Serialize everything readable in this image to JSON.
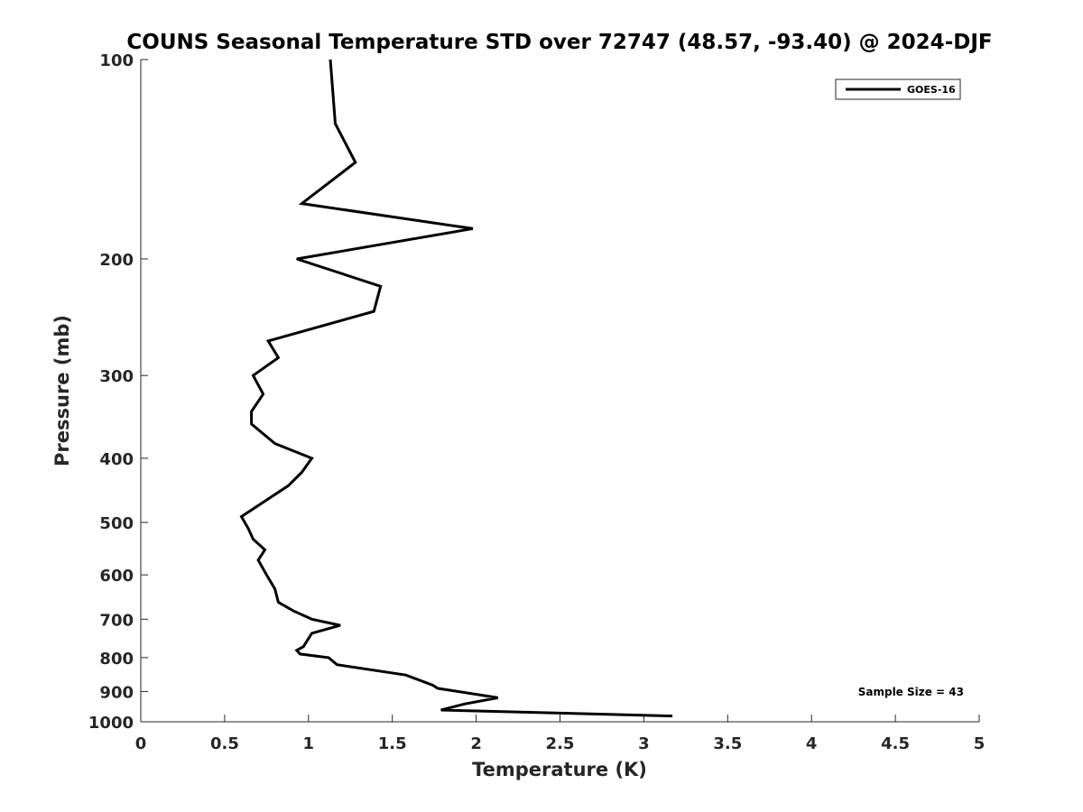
{
  "chart_data": {
    "type": "line",
    "title": "COUNS Seasonal Temperature STD over 72747 (48.57, -93.40) @ 2024-DJF",
    "xlabel": "Temperature (K)",
    "ylabel": "Pressure (mb)",
    "xlim": [
      0,
      5
    ],
    "ylim": [
      100,
      1000
    ],
    "y_scale": "log",
    "y_reversed": true,
    "grid": false,
    "legend_position": "top-right",
    "x_ticks": [
      "0",
      "0.5",
      "1",
      "1.5",
      "2",
      "2.5",
      "3",
      "3.5",
      "4",
      "4.5",
      "5"
    ],
    "y_ticks": [
      "100",
      "200",
      "300",
      "400",
      "500",
      "600",
      "700",
      "800",
      "900",
      "1000"
    ],
    "annotation": "Sample Size = 43",
    "series": [
      {
        "name": "GOES-16",
        "color": "#000000",
        "points": [
          [
            1.13,
            100
          ],
          [
            1.16,
            125
          ],
          [
            1.28,
            143
          ],
          [
            0.96,
            165
          ],
          [
            1.98,
            180
          ],
          [
            0.93,
            200
          ],
          [
            1.43,
            220
          ],
          [
            1.39,
            240
          ],
          [
            0.76,
            266
          ],
          [
            0.82,
            282
          ],
          [
            0.67,
            300
          ],
          [
            0.73,
            320
          ],
          [
            0.66,
            340
          ],
          [
            0.66,
            355
          ],
          [
            0.8,
            380
          ],
          [
            1.02,
            400
          ],
          [
            0.96,
            420
          ],
          [
            0.88,
            440
          ],
          [
            0.6,
            490
          ],
          [
            0.64,
            510
          ],
          [
            0.67,
            530
          ],
          [
            0.74,
            550
          ],
          [
            0.7,
            570
          ],
          [
            0.75,
            600
          ],
          [
            0.8,
            630
          ],
          [
            0.82,
            660
          ],
          [
            0.91,
            680
          ],
          [
            1.02,
            700
          ],
          [
            1.19,
            715
          ],
          [
            1.02,
            735
          ],
          [
            0.97,
            770
          ],
          [
            0.93,
            780
          ],
          [
            0.95,
            790
          ],
          [
            1.12,
            800
          ],
          [
            1.17,
            820
          ],
          [
            1.58,
            850
          ],
          [
            1.74,
            880
          ],
          [
            1.77,
            890
          ],
          [
            2.13,
            920
          ],
          [
            1.93,
            940
          ],
          [
            1.79,
            960
          ],
          [
            3.17,
            980
          ]
        ]
      }
    ]
  }
}
